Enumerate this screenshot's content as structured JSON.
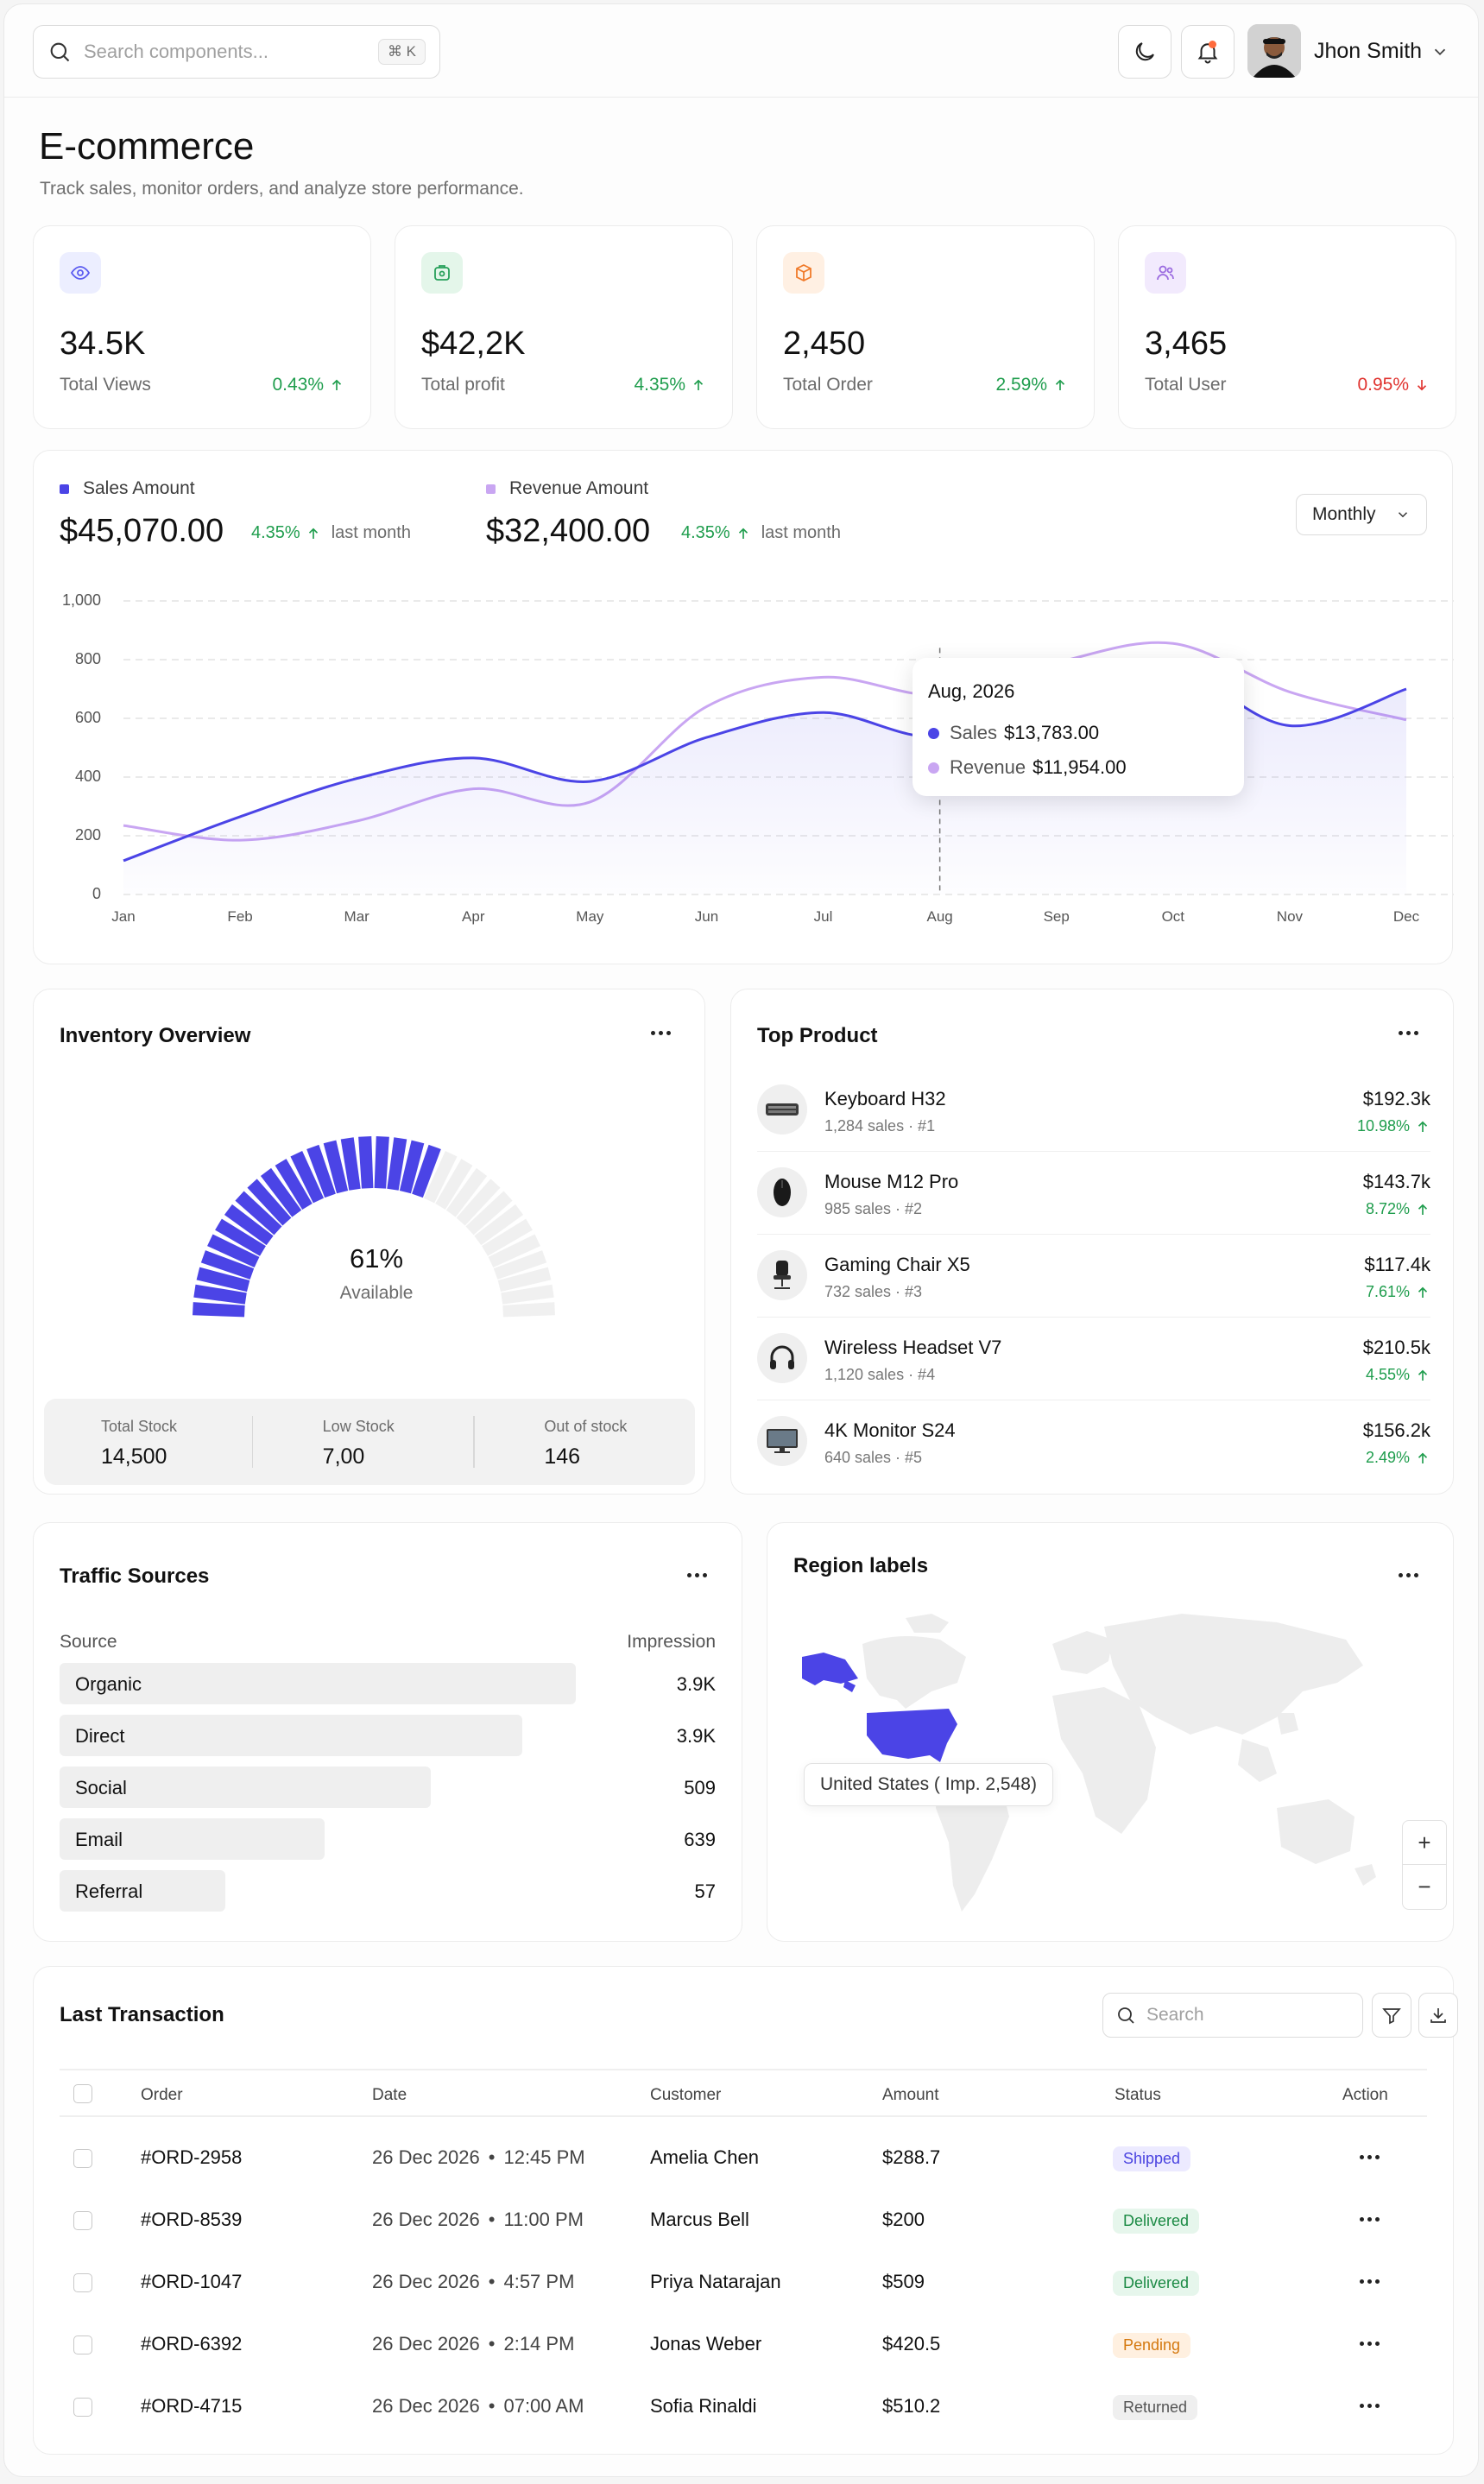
{
  "header": {
    "search_placeholder": "Search components...",
    "search_shortcut": "⌘ K",
    "user_name": "Jhon Smith"
  },
  "page": {
    "title": "E-commerce",
    "subtitle": "Track sales, monitor orders, and analyze store performance."
  },
  "stats": [
    {
      "icon": "eye-icon",
      "value": "34.5K",
      "label": "Total Views",
      "change": "0.43%",
      "trend": "up",
      "color": "#5b5bf0"
    },
    {
      "icon": "wallet-icon",
      "value": "$42,2K",
      "label": "Total profit",
      "change": "4.35%",
      "trend": "up",
      "color": "#27a05a"
    },
    {
      "icon": "box-icon",
      "value": "2,450",
      "label": "Total Order",
      "change": "2.59%",
      "trend": "up",
      "color": "#f07a2a"
    },
    {
      "icon": "users-icon",
      "value": "3,465",
      "label": "Total User",
      "change": "0.95%",
      "trend": "down",
      "color": "#9b6be0"
    }
  ],
  "sales_panel": {
    "sales_label": "Sales Amount",
    "sales_amount": "$45,070.00",
    "sales_change": "4.35%",
    "revenue_label": "Revenue Amount",
    "revenue_amount": "$32,400.00",
    "revenue_change": "4.35%",
    "period_suffix": "last month",
    "period_select": "Monthly",
    "tooltip": {
      "title": "Aug, 2026",
      "sales_key": "Sales",
      "sales_value": "$13,783.00",
      "revenue_key": "Revenue",
      "revenue_value": "$11,954.00"
    }
  },
  "chart_data": {
    "type": "area",
    "categories": [
      "Jan",
      "Feb",
      "Mar",
      "Apr",
      "May",
      "Jun",
      "Jul",
      "Aug",
      "Sep",
      "Oct",
      "Nov",
      "Dec"
    ],
    "yticks": [
      "1,000",
      "800",
      "600",
      "400",
      "200",
      "0"
    ],
    "ylim": [
      0,
      1000
    ],
    "grid": true,
    "series": [
      {
        "name": "Sales",
        "color": "#4b44e6",
        "values": [
          115,
          265,
          395,
          465,
          385,
          535,
          620,
          540,
          730,
          770,
          575,
          700
        ]
      },
      {
        "name": "Revenue",
        "color": "#c9a6f2",
        "values": [
          235,
          185,
          250,
          360,
          315,
          640,
          740,
          680,
          790,
          855,
          690,
          595
        ]
      }
    ]
  },
  "inventory": {
    "title": "Inventory Overview",
    "percent": "61%",
    "percent_value": 61,
    "percent_label": "Available",
    "total_stock_label": "Total Stock",
    "total_stock": "14,500",
    "low_stock_label": "Low Stock",
    "low_stock": "7,00",
    "out_stock_label": "Out of stock",
    "out_stock": "146",
    "accent": "#4b44e6"
  },
  "top_product": {
    "title": "Top Product",
    "items": [
      {
        "name": "Keyboard H32",
        "sub": "1,284 sales · #1",
        "price": "$192.3k",
        "change": "10.98%"
      },
      {
        "name": "Mouse M12 Pro",
        "sub": "985 sales · #2",
        "price": "$143.7k",
        "change": "8.72%"
      },
      {
        "name": "Gaming Chair X5",
        "sub": "732 sales · #3",
        "price": "$117.4k",
        "change": "7.61%"
      },
      {
        "name": "Wireless Headset V7",
        "sub": "1,120 sales · #4",
        "price": "$210.5k",
        "change": "4.55%"
      },
      {
        "name": "4K Monitor S24",
        "sub": "640 sales · #5",
        "price": "$156.2k",
        "change": "2.49%"
      }
    ]
  },
  "traffic": {
    "title": "Traffic Sources",
    "col_source": "Source",
    "col_impression": "Impression",
    "rows": [
      {
        "source": "Organic",
        "impression": "3.9K"
      },
      {
        "source": "Direct",
        "impression": "3.9K"
      },
      {
        "source": "Social",
        "impression": "509"
      },
      {
        "source": "Email",
        "impression": "639"
      },
      {
        "source": "Referral",
        "impression": "57"
      }
    ]
  },
  "region": {
    "title": "Region labels",
    "tooltip": "United States ( Imp. 2,548)",
    "zoom_in": "+",
    "zoom_out": "−",
    "highlight": "#4b44e6"
  },
  "transactions": {
    "title": "Last Transaction",
    "search_placeholder": "Search",
    "columns": [
      "Order",
      "Date",
      "Customer",
      "Amount",
      "Status",
      "Action"
    ],
    "rows": [
      {
        "order": "#ORD-2958",
        "date": "26 Dec 2026",
        "time": "12:45 PM",
        "customer": "Amelia Chen",
        "amount": "$288.7",
        "status": "Shipped"
      },
      {
        "order": "#ORD-8539",
        "date": "26 Dec 2026",
        "time": "11:00 PM",
        "customer": "Marcus Bell",
        "amount": "$200",
        "status": "Delivered"
      },
      {
        "order": "#ORD-1047",
        "date": "26 Dec 2026",
        "time": "4:57 PM",
        "customer": "Priya Natarajan",
        "amount": "$509",
        "status": "Delivered"
      },
      {
        "order": "#ORD-6392",
        "date": "26 Dec 2026",
        "time": "2:14 PM",
        "customer": "Jonas Weber",
        "amount": "$420.5",
        "status": "Pending"
      },
      {
        "order": "#ORD-4715",
        "date": "26 Dec 2026",
        "time": "07:00 AM",
        "customer": "Sofia Rinaldi",
        "amount": "$510.2",
        "status": "Returned"
      }
    ]
  }
}
